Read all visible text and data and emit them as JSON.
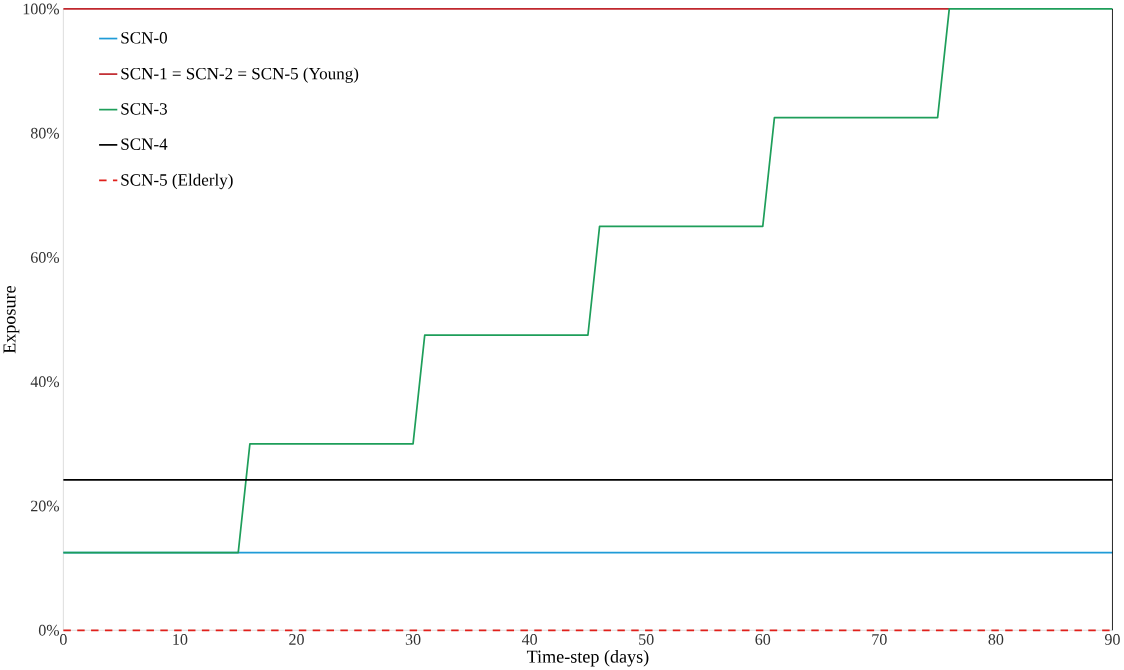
{
  "chart_data": {
    "type": "line",
    "xlabel": "Time-step (days)",
    "ylabel": "Exposure",
    "xlim": [
      0,
      90
    ],
    "xticks": [
      0,
      10,
      20,
      30,
      40,
      50,
      60,
      70,
      80,
      90
    ],
    "ylim": [
      0,
      100
    ],
    "yticks": [
      {
        "value": 0,
        "label": "0%"
      },
      {
        "value": 20,
        "label": "20%"
      },
      {
        "value": 40,
        "label": "40%"
      },
      {
        "value": 60,
        "label": "60%"
      },
      {
        "value": 80,
        "label": "80%"
      },
      {
        "value": 100,
        "label": "100%"
      }
    ],
    "grid": false,
    "legend": "top left",
    "marker": "none",
    "series": [
      {
        "name": "SCN-0",
        "color": "#1f9bd7",
        "x": [
          0,
          90
        ],
        "values": [
          12.5,
          12.5
        ]
      },
      {
        "name": "SCN-1 = SCN-2 = SCN-5 (Young)",
        "color": "#c0272d",
        "x": [
          0,
          76
        ],
        "values": [
          100,
          100
        ]
      },
      {
        "name": "SCN-3",
        "color": "#1e9e5a",
        "x": [
          0,
          15,
          16,
          30,
          31,
          45,
          46,
          60,
          61,
          75,
          76,
          90
        ],
        "values": [
          12.5,
          12.5,
          30,
          30,
          47.5,
          47.5,
          65,
          65,
          82.5,
          82.5,
          100,
          100
        ]
      },
      {
        "name": "SCN-4",
        "color": "#000000",
        "x": [
          0,
          90
        ],
        "values": [
          24.2,
          24.2
        ]
      },
      {
        "name": "SCN-5 (Elderly)",
        "color": "#e0201b",
        "line_style": "dashed",
        "x": [
          0,
          90
        ],
        "values": [
          0,
          0
        ]
      }
    ]
  }
}
